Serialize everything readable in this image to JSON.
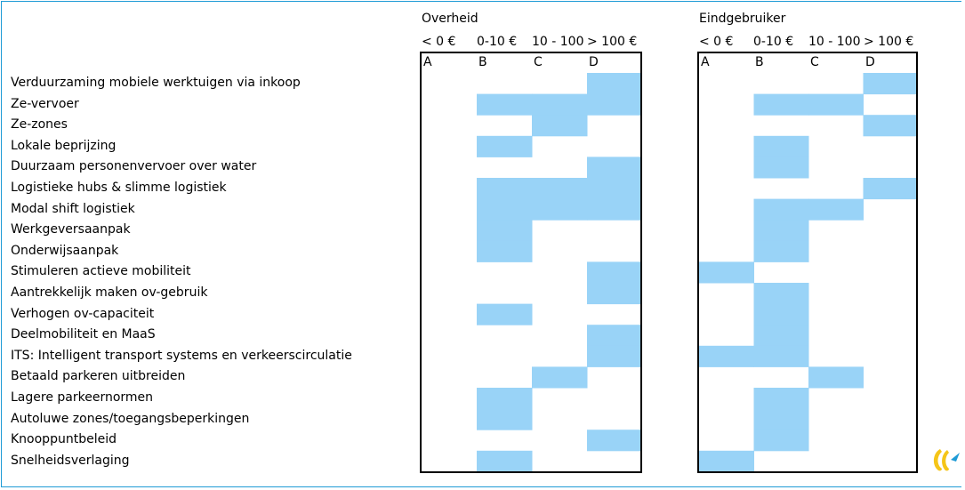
{
  "chart_data": {
    "type": "heatmap",
    "colors": {
      "fill": "#99d3f7",
      "frame": "#1f9bd6"
    },
    "columns": [
      {
        "letter": "A",
        "range": "< 0 €"
      },
      {
        "letter": "B",
        "range": "0-10 €"
      },
      {
        "letter": "C",
        "range": "10 - 100"
      },
      {
        "letter": "D",
        "range": "> 100 €"
      }
    ],
    "rows": [
      "Verduurzaming mobiele werktuigen via inkoop",
      "Ze-vervoer",
      "Ze-zones",
      "Lokale beprijzing",
      "Duurzaam personenvervoer over water",
      "Logistieke hubs & slimme logistiek",
      "Modal shift logistiek",
      "Werkgeversaanpak",
      "Onderwijsaanpak",
      "Stimuleren actieve mobiliteit",
      "Aantrekkelijk maken ov-gebruik",
      "Verhogen ov-capaciteit",
      "Deelmobiliteit en MaaS",
      "ITS: Intelligent transport systems en verkeerscirculatie",
      "Betaald parkeren uitbreiden",
      "Lagere parkeernormen",
      "Autoluwe zones/toegangsbeperkingen",
      "Knooppuntbeleid",
      "Snelheidsverlaging"
    ],
    "panels": [
      {
        "title": "Overheid",
        "cells": [
          [
            0,
            0,
            0,
            1
          ],
          [
            0,
            1,
            1,
            1
          ],
          [
            0,
            0,
            1,
            0
          ],
          [
            0,
            1,
            0,
            0
          ],
          [
            0,
            0,
            0,
            1
          ],
          [
            0,
            1,
            1,
            1
          ],
          [
            0,
            1,
            1,
            1
          ],
          [
            0,
            1,
            0,
            0
          ],
          [
            0,
            1,
            0,
            0
          ],
          [
            0,
            0,
            0,
            1
          ],
          [
            0,
            0,
            0,
            1
          ],
          [
            0,
            1,
            0,
            0
          ],
          [
            0,
            0,
            0,
            1
          ],
          [
            0,
            0,
            0,
            1
          ],
          [
            0,
            0,
            1,
            0
          ],
          [
            0,
            1,
            0,
            0
          ],
          [
            0,
            1,
            0,
            0
          ],
          [
            0,
            0,
            0,
            1
          ],
          [
            0,
            1,
            0,
            0
          ]
        ]
      },
      {
        "title": "Eindgebruiker",
        "cells": [
          [
            0,
            0,
            0,
            1
          ],
          [
            0,
            1,
            1,
            0
          ],
          [
            0,
            0,
            0,
            1
          ],
          [
            0,
            1,
            0,
            0
          ],
          [
            0,
            1,
            0,
            0
          ],
          [
            0,
            0,
            0,
            1
          ],
          [
            0,
            1,
            1,
            0
          ],
          [
            0,
            1,
            0,
            0
          ],
          [
            0,
            1,
            0,
            0
          ],
          [
            1,
            0,
            0,
            0
          ],
          [
            0,
            1,
            0,
            0
          ],
          [
            0,
            1,
            0,
            0
          ],
          [
            0,
            1,
            0,
            0
          ],
          [
            1,
            1,
            0,
            0
          ],
          [
            0,
            0,
            1,
            0
          ],
          [
            0,
            1,
            0,
            0
          ],
          [
            0,
            1,
            0,
            0
          ],
          [
            0,
            1,
            0,
            0
          ],
          [
            1,
            0,
            0,
            0
          ]
        ]
      }
    ]
  }
}
